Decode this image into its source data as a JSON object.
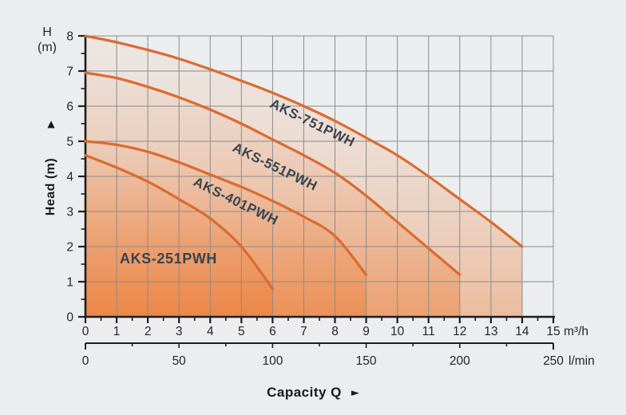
{
  "chart": {
    "y_axis_unit": {
      "line1": "H",
      "line2": "(m)"
    },
    "y_axis_label": {
      "text": "Head (m)",
      "arrow": "▲"
    },
    "x_axis_label": {
      "text": "Capacity Q",
      "arrow": "►"
    },
    "x_unit_primary": "m³/h",
    "x_unit_secondary": "l/min"
  },
  "chart_data": {
    "type": "line",
    "xlabel": "Capacity Q",
    "ylabel": "Head (m)",
    "x_units": [
      "m³/h",
      "l/min"
    ],
    "xlim": [
      0,
      15
    ],
    "ylim": [
      0,
      8
    ],
    "grid": true,
    "x_ticks_m3h": [
      0,
      1,
      2,
      3,
      4,
      5,
      6,
      7,
      8,
      9,
      10,
      11,
      12,
      13,
      14,
      15
    ],
    "x_ticks_lmin": [
      0,
      50,
      100,
      150,
      200,
      250
    ],
    "x_lmin_max": 250,
    "y_ticks": [
      0,
      1,
      2,
      3,
      4,
      5,
      6,
      7,
      8
    ],
    "series": [
      {
        "name": "AKS-751PWH",
        "points": [
          [
            0,
            8
          ],
          [
            1,
            7.82
          ],
          [
            2,
            7.6
          ],
          [
            3,
            7.35
          ],
          [
            4,
            7.05
          ],
          [
            5,
            6.72
          ],
          [
            6,
            6.38
          ],
          [
            7,
            6.0
          ],
          [
            8,
            5.58
          ],
          [
            9,
            5.1
          ],
          [
            10,
            4.6
          ],
          [
            11,
            4.0
          ],
          [
            12,
            3.35
          ],
          [
            13,
            2.7
          ],
          [
            14,
            2.0
          ]
        ]
      },
      {
        "name": "AKS-551PWH",
        "points": [
          [
            0,
            6.95
          ],
          [
            1,
            6.8
          ],
          [
            2,
            6.55
          ],
          [
            3,
            6.25
          ],
          [
            4,
            5.9
          ],
          [
            5,
            5.5
          ],
          [
            6,
            5.05
          ],
          [
            7,
            4.6
          ],
          [
            8,
            4.1
          ],
          [
            9,
            3.45
          ],
          [
            10,
            2.7
          ],
          [
            11,
            1.95
          ],
          [
            12,
            1.2
          ]
        ]
      },
      {
        "name": "AKS-401PWH",
        "points": [
          [
            0,
            5.0
          ],
          [
            1,
            4.9
          ],
          [
            2,
            4.7
          ],
          [
            3,
            4.4
          ],
          [
            4,
            4.05
          ],
          [
            5,
            3.7
          ],
          [
            6,
            3.3
          ],
          [
            7,
            2.85
          ],
          [
            8,
            2.3
          ],
          [
            9,
            1.2
          ]
        ]
      },
      {
        "name": "AKS-251PWH",
        "points": [
          [
            0,
            4.6
          ],
          [
            1,
            4.25
          ],
          [
            2,
            3.85
          ],
          [
            3,
            3.35
          ],
          [
            4,
            2.8
          ],
          [
            5,
            2.0
          ],
          [
            6,
            0.8
          ]
        ]
      }
    ],
    "colors": {
      "curve": "#dc6a2e",
      "series_label": "#3a4450",
      "grid": "#8b8b8b",
      "axis": "#1d1d1f",
      "fill_base": "#eb7d37",
      "background": "#ecedee"
    }
  }
}
